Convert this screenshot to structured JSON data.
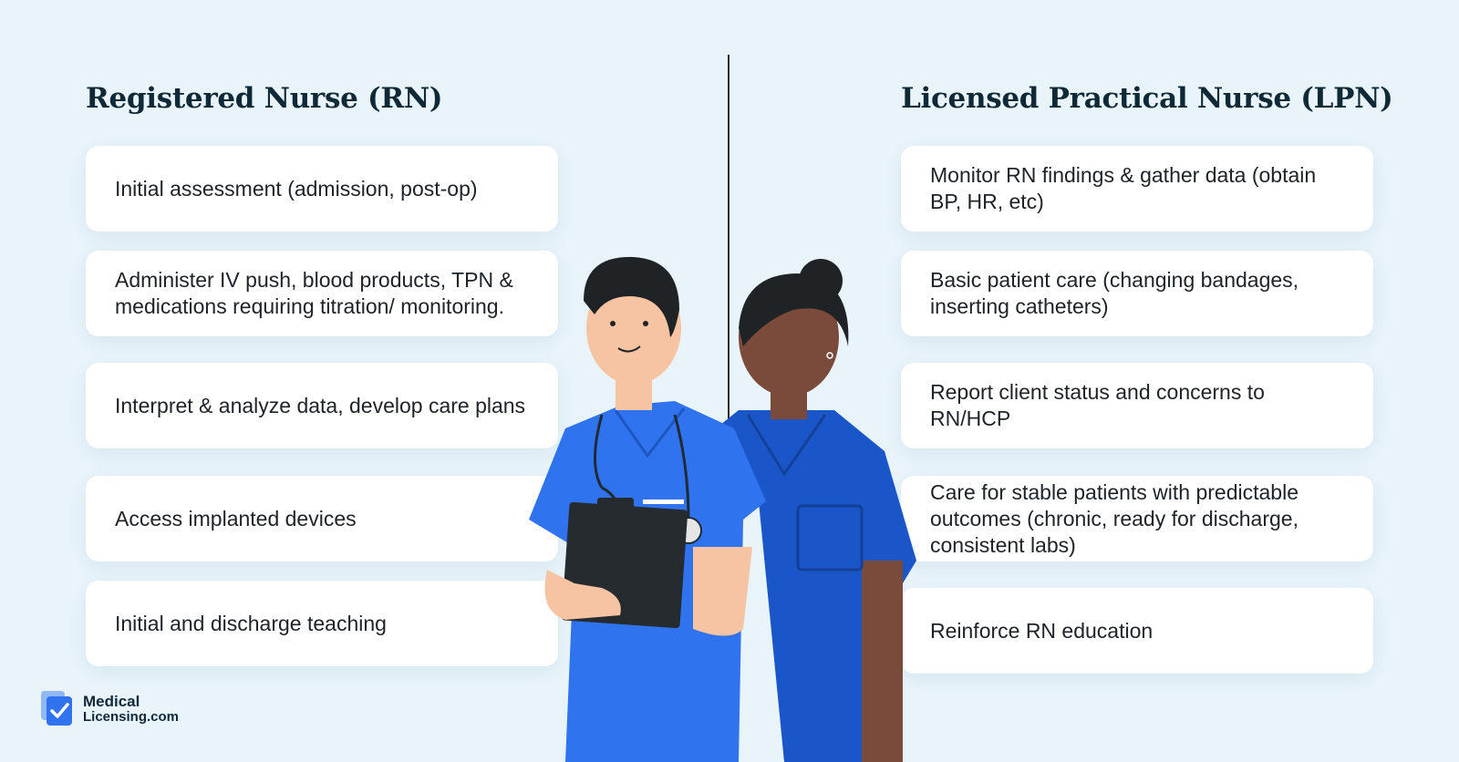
{
  "left": {
    "title": "Registered Nurse (RN)",
    "items": [
      "Initial assessment (admission, post-op)",
      "Administer IV push, blood products, TPN & medications requiring titration/ monitoring.",
      "Interpret & analyze data, develop care plans",
      "Access implanted devices",
      "Initial and discharge teaching"
    ]
  },
  "right": {
    "title": "Licensed Practical Nurse (LPN)",
    "items": [
      "Monitor RN findings & gather data (obtain BP, HR, etc)",
      "Basic patient care (changing bandages, inserting catheters)",
      "Report client status and concerns to RN/HCP",
      "Care for stable patients with predictable outcomes (chronic, ready for discharge, consistent labs)",
      "Reinforce RN education"
    ]
  },
  "logo": {
    "line1": "Medical",
    "line2": "Licensing.com",
    "icon": "check-document-icon"
  },
  "colors": {
    "background": "#e9f4fa",
    "scrubs_blue": "#1a63e6",
    "title": "#0f2a36"
  }
}
